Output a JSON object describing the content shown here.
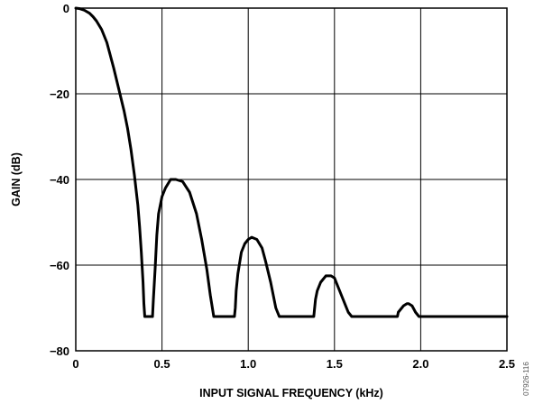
{
  "chart_data": {
    "type": "line",
    "xlabel": "INPUT SIGNAL FREQUENCY (kHz)",
    "ylabel": "GAIN (dB)",
    "xlim": [
      0,
      2.5
    ],
    "ylim": [
      -80,
      0
    ],
    "xticks": [
      0,
      0.5,
      1.0,
      1.5,
      2.0,
      2.5
    ],
    "xtick_labels": [
      "0",
      "0.5",
      "1.0",
      "1.5",
      "2.0",
      "2.5"
    ],
    "yticks": [
      0,
      -20,
      -40,
      -60,
      -80
    ],
    "ytick_labels": [
      "0",
      "−20",
      "−40",
      "−60",
      "−80"
    ],
    "grid": true,
    "series": [
      {
        "x": [
          0,
          0.02,
          0.05,
          0.08,
          0.1,
          0.12,
          0.15,
          0.18,
          0.2,
          0.22,
          0.25,
          0.28,
          0.3,
          0.32,
          0.34,
          0.36,
          0.37,
          0.38,
          0.39,
          0.395,
          0.4,
          0.405,
          0.41,
          0.43,
          0.445,
          0.45,
          0.46,
          0.47,
          0.48,
          0.5,
          0.52,
          0.55,
          0.58,
          0.62,
          0.66,
          0.7,
          0.73,
          0.76,
          0.78,
          0.8,
          0.81,
          0.815,
          0.82,
          0.84,
          0.88,
          0.92,
          0.925,
          0.93,
          0.94,
          0.96,
          0.98,
          1.0,
          1.02,
          1.05,
          1.08,
          1.1,
          1.13,
          1.16,
          1.18,
          1.2,
          1.205,
          1.21,
          1.25,
          1.3,
          1.35,
          1.38,
          1.385,
          1.39,
          1.4,
          1.42,
          1.45,
          1.48,
          1.5,
          1.52,
          1.55,
          1.58,
          1.6,
          1.605,
          1.61,
          1.7,
          1.8,
          1.86,
          1.865,
          1.87,
          1.88,
          1.9,
          1.92,
          1.93,
          1.95,
          1.97,
          1.99,
          2.0,
          2.1,
          2.3,
          2.5
        ],
        "y": [
          0,
          -0.1,
          -0.5,
          -1.2,
          -2,
          -3,
          -5,
          -8,
          -11,
          -14,
          -19,
          -24,
          -28,
          -33,
          -39,
          -46,
          -51,
          -57,
          -64,
          -69,
          -72,
          -72,
          -72,
          -72,
          -72,
          -68,
          -61,
          -53,
          -48,
          -44,
          -42,
          -40,
          -40,
          -40.5,
          -43,
          -48,
          -54,
          -61,
          -67,
          -72,
          -72,
          -72,
          -72,
          -72,
          -72,
          -72,
          -70,
          -66,
          -62,
          -57,
          -55,
          -54,
          -53.5,
          -54,
          -56,
          -59,
          -64,
          -70,
          -72,
          -72,
          -72,
          -72,
          -72,
          -72,
          -72,
          -72,
          -70,
          -68,
          -66,
          -64,
          -62.5,
          -62.5,
          -63,
          -65,
          -68,
          -71,
          -72,
          -72,
          -72,
          -72,
          -72,
          -72,
          -72,
          -71,
          -70.5,
          -69.5,
          -69,
          -69,
          -69.5,
          -71,
          -72,
          -72,
          -72,
          -72,
          -72
        ]
      }
    ]
  },
  "figure_id": "07926-116"
}
